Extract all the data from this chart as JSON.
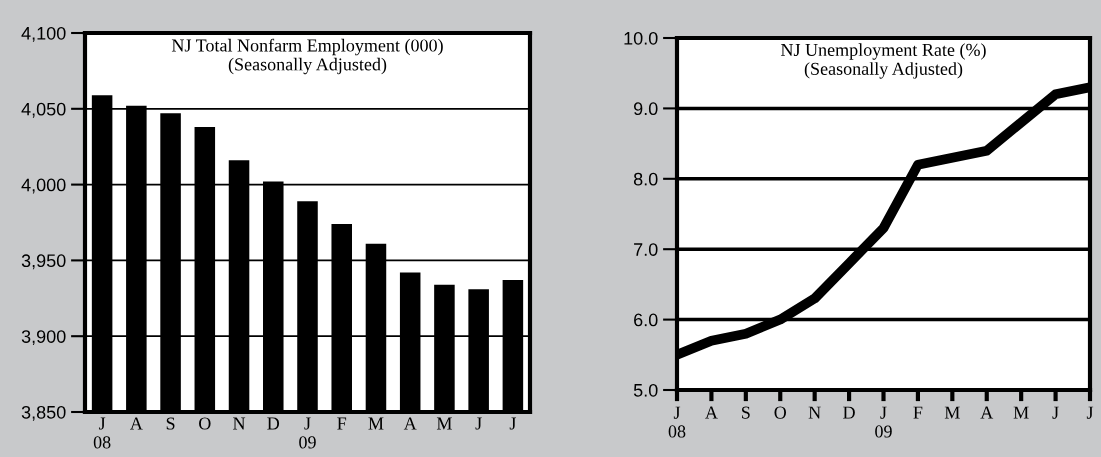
{
  "chart_data": [
    {
      "type": "bar",
      "title": "NJ Total Nonfarm Employment (000)",
      "subtitle": "(Seasonally Adjusted)",
      "categories": [
        "J\n08",
        "A",
        "S",
        "O",
        "N",
        "D",
        "J\n09",
        "F",
        "M",
        "A",
        "M",
        "J",
        "J"
      ],
      "values": [
        4059,
        4052,
        4047,
        4038,
        4016,
        4002,
        3989,
        3974,
        3961,
        3942,
        3934,
        3931,
        3937
      ],
      "color": "#000000",
      "ylim": [
        3850,
        4100
      ],
      "yticks": [
        {
          "value": 3850,
          "label": "3,850"
        },
        {
          "value": 3900,
          "label": "3,900"
        },
        {
          "value": 3950,
          "label": "3,950"
        },
        {
          "value": 4000,
          "label": "4,000"
        },
        {
          "value": 4050,
          "label": "4,050"
        },
        {
          "value": 4100,
          "label": "4,100"
        }
      ],
      "grid": "y"
    },
    {
      "type": "line",
      "title": "NJ Unemployment Rate (%)",
      "subtitle": "(Seasonally Adjusted)",
      "categories": [
        "J\n08",
        "A",
        "S",
        "O",
        "N",
        "D",
        "J\n09",
        "F",
        "M",
        "A",
        "M",
        "J",
        "J"
      ],
      "values": [
        5.5,
        5.7,
        5.8,
        6.0,
        6.3,
        6.8,
        7.3,
        8.2,
        8.3,
        8.4,
        8.8,
        9.2,
        9.3
      ],
      "color": "#000000",
      "ylim": [
        5.0,
        10.0
      ],
      "yticks": [
        {
          "value": 5,
          "label": "5.0"
        },
        {
          "value": 6,
          "label": "6.0"
        },
        {
          "value": 7,
          "label": "7.0"
        },
        {
          "value": 8,
          "label": "8.0"
        },
        {
          "value": 9,
          "label": "9.0"
        },
        {
          "value": 10,
          "label": "10.0"
        }
      ],
      "grid": "y",
      "marker": "none",
      "line_style": "solid"
    }
  ]
}
